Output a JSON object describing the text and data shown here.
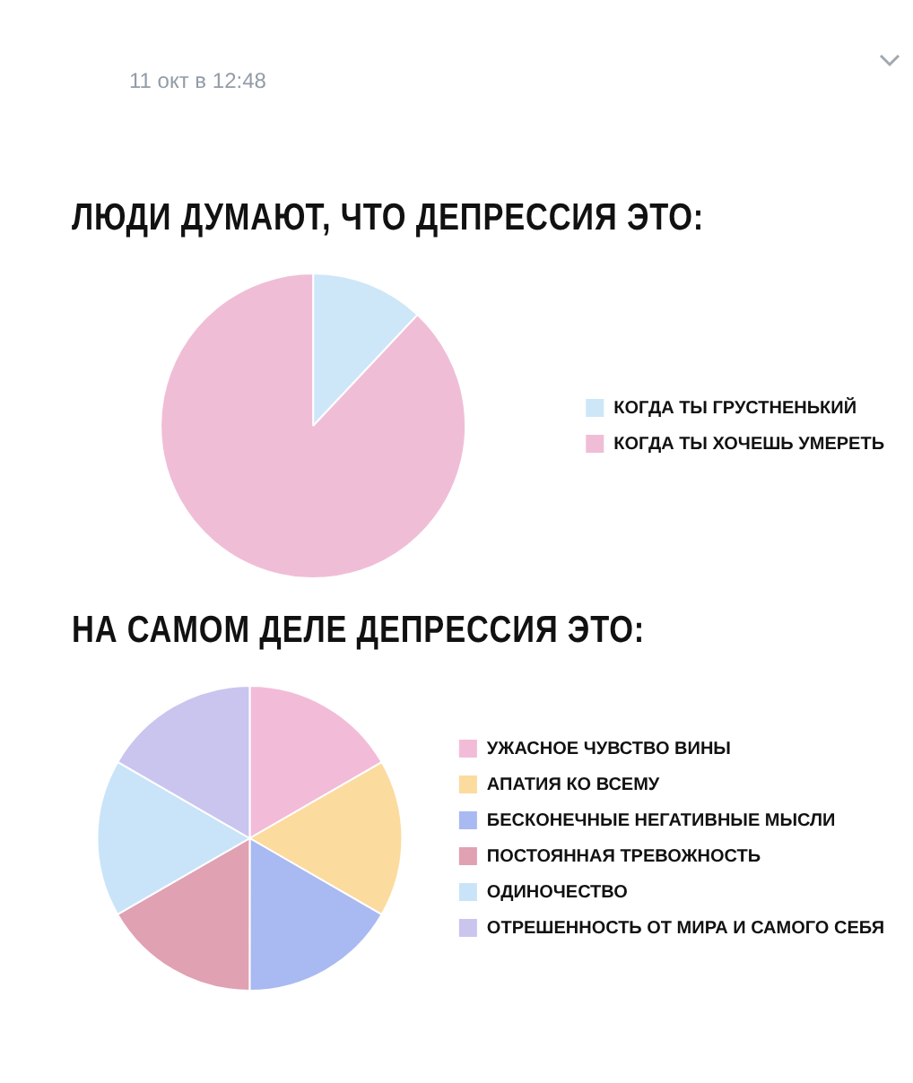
{
  "chart_data": [
    {
      "type": "pie",
      "title": "ЛЮДИ ДУМАЮТ, ЧТО ДЕПРЕССИЯ ЭТО:",
      "categories": [
        "КОГДА ТЫ ГРУСТНЕНЬКИЙ",
        "КОГДА ТЫ ХОЧЕШЬ УМЕРЕТЬ"
      ],
      "values": [
        12,
        88
      ],
      "colors": [
        "#cde7f8",
        "#f0bdd7"
      ],
      "legend": "right",
      "annotations": [
        "11 окт в 12:48"
      ]
    },
    {
      "type": "pie",
      "title": "НА САМОМ ДЕЛЕ ДЕПРЕССИЯ ЭТО:",
      "categories": [
        "УЖАСНОЕ ЧУВСТВО ВИНЫ",
        "АПАТИЯ КО ВСЕМУ",
        "БЕСКОНЕЧНЫЕ НЕГАТИВНЫЕ МЫСЛИ",
        "ПОСТОЯННАЯ ТРЕВОЖНОСТЬ",
        "ОДИНОЧЕСТВО",
        "ОТРЕШЕННОСТЬ ОТ МИРА И САМОГО СЕБЯ"
      ],
      "values": [
        16.67,
        16.67,
        16.67,
        16.67,
        16.66,
        16.66
      ],
      "colors": [
        "#f2bcd9",
        "#fcdb9f",
        "#a9b9f1",
        "#e0a1b3",
        "#c9e4f8",
        "#c9c5ef"
      ],
      "legend": "right"
    }
  ]
}
